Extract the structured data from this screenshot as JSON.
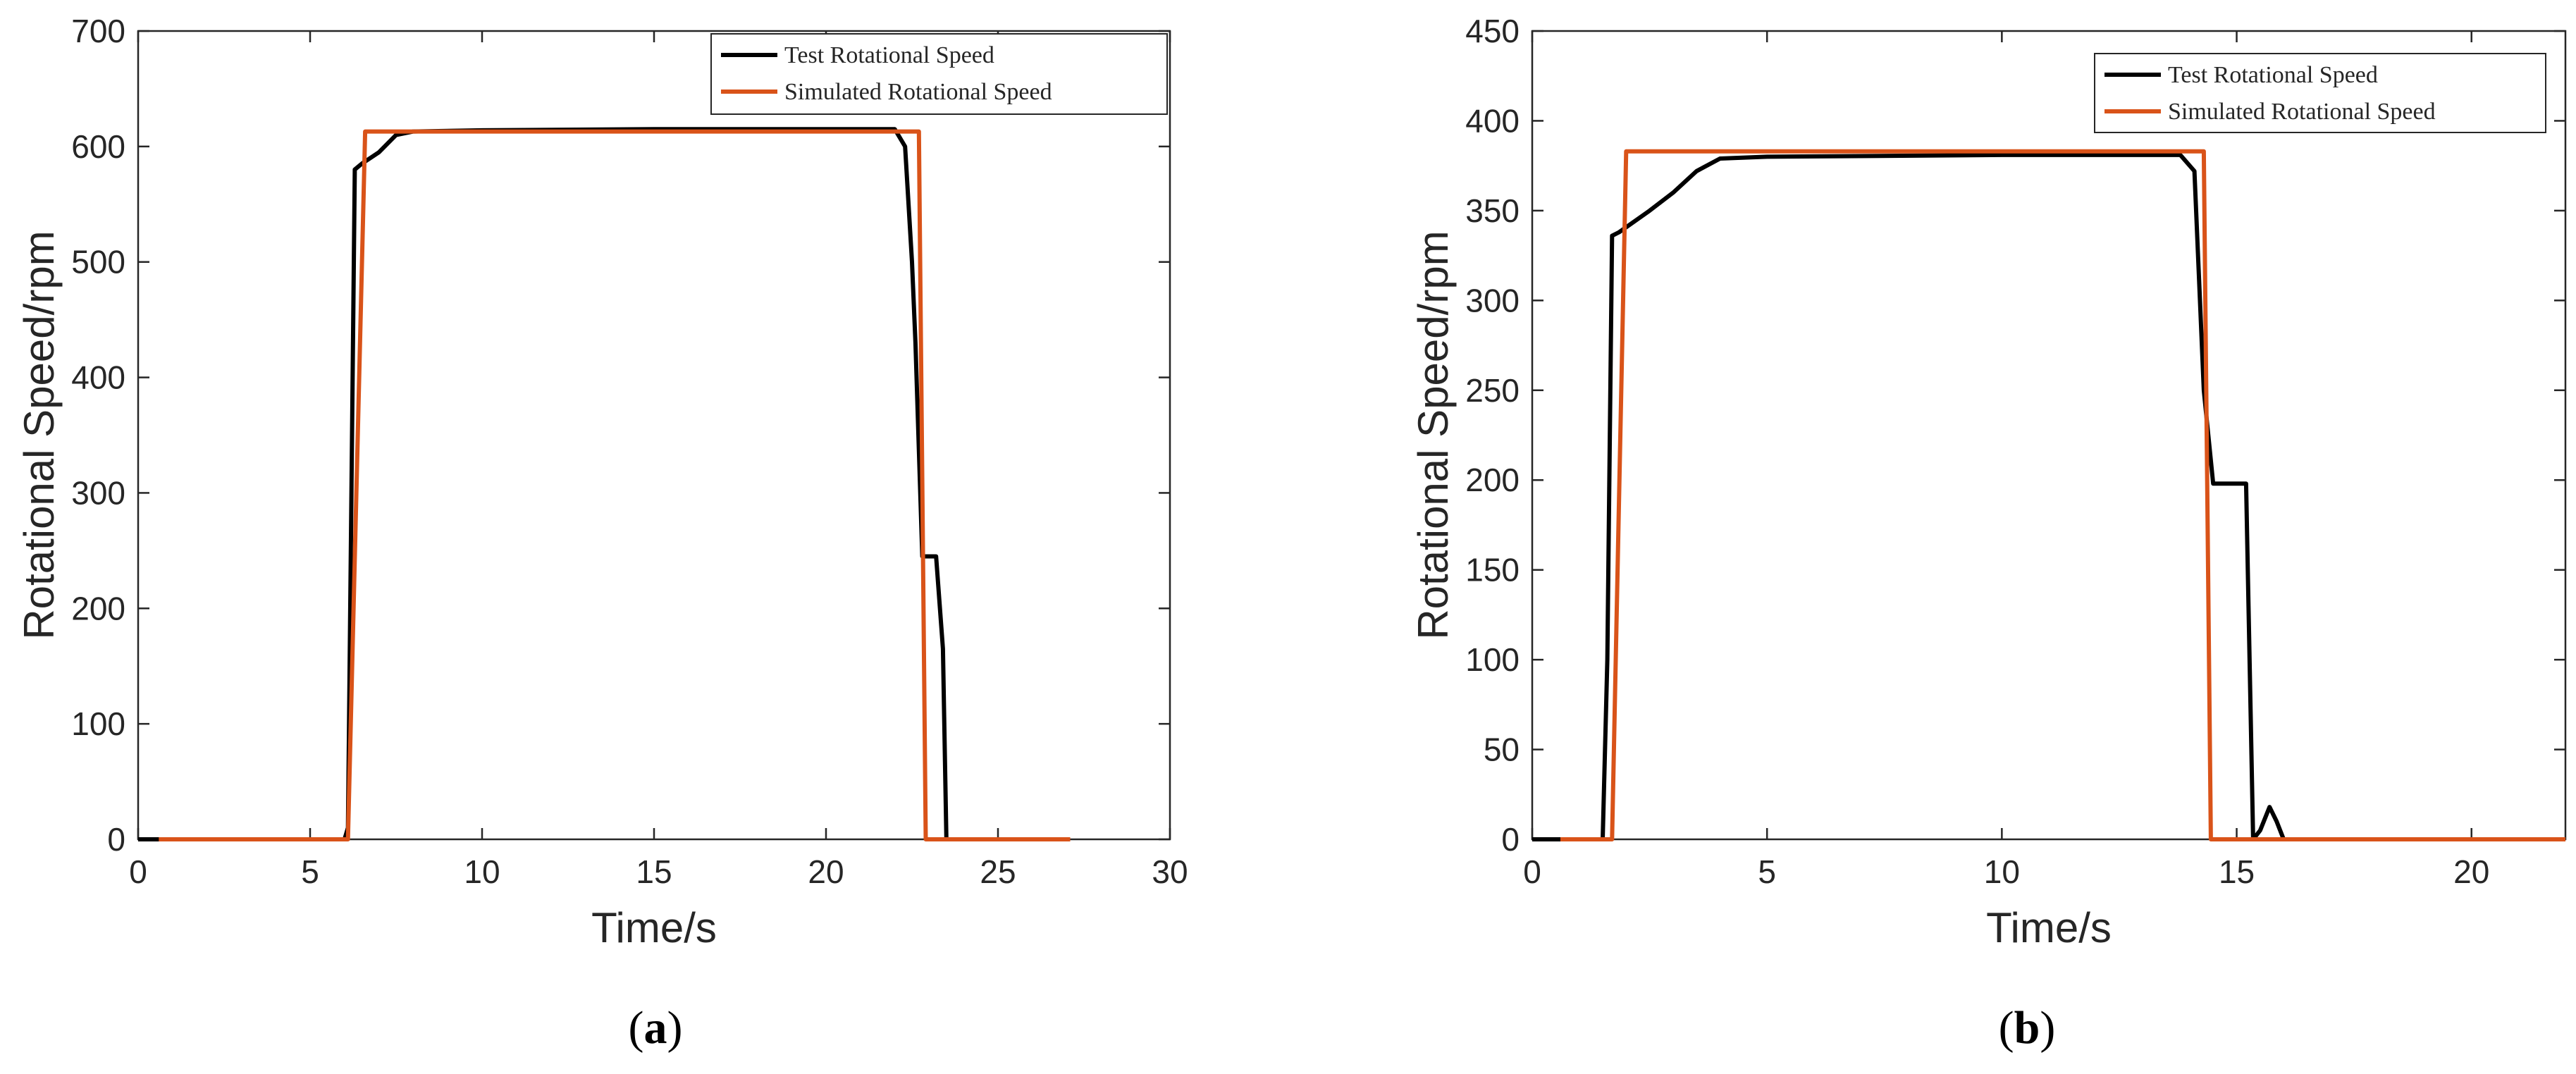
{
  "chart_data": [
    {
      "type": "line",
      "panel_label": "a",
      "xlabel": "Time/s",
      "ylabel": "Rotational Speed/rpm",
      "xlim": [
        0,
        30
      ],
      "ylim": [
        0,
        700
      ],
      "xticks": [
        0,
        5,
        10,
        15,
        20,
        25,
        30
      ],
      "yticks": [
        0,
        100,
        200,
        300,
        400,
        500,
        600,
        700
      ],
      "legend_position": "top-right",
      "grid": false,
      "series": [
        {
          "name": "Test Rotational Speed",
          "color": "#000000",
          "x": [
            0,
            0.6,
            6.0,
            6.1,
            6.3,
            6.5,
            7.0,
            7.5,
            8.0,
            10,
            15,
            20,
            22.0,
            22.3,
            22.5,
            22.6,
            22.8,
            22.9,
            23.2,
            23.4,
            23.5
          ],
          "y": [
            0,
            0,
            0,
            10,
            580,
            585,
            595,
            610,
            613,
            614,
            615,
            615,
            615,
            600,
            500,
            430,
            245,
            245,
            245,
            165,
            0
          ]
        },
        {
          "name": "Simulated Rotational Speed",
          "color": "#d95319",
          "x": [
            0.6,
            6.1,
            6.6,
            22.7,
            22.9,
            27.1
          ],
          "y": [
            0,
            0,
            613,
            613,
            0,
            0
          ]
        }
      ]
    },
    {
      "type": "line",
      "panel_label": "b",
      "xlabel": "Time/s",
      "ylabel": "Rotational Speed/rpm",
      "xlim": [
        0,
        22
      ],
      "ylim": [
        0,
        450
      ],
      "xticks": [
        0,
        5,
        10,
        15,
        20
      ],
      "yticks": [
        0,
        50,
        100,
        150,
        200,
        250,
        300,
        350,
        400,
        450
      ],
      "legend_position": "top-right",
      "grid": false,
      "series": [
        {
          "name": "Test Rotational Speed",
          "color": "#000000",
          "x": [
            0,
            0.6,
            1.5,
            1.6,
            1.7,
            1.85,
            2.5,
            3.0,
            3.5,
            4.0,
            5,
            10,
            13.8,
            14.1,
            14.3,
            14.5,
            15.2,
            15.35,
            15.5,
            15.7,
            15.85,
            16.0,
            22
          ],
          "y": [
            0,
            0,
            0,
            100,
            336,
            338,
            350,
            360,
            372,
            379,
            380,
            381,
            381,
            372,
            250,
            198,
            198,
            0,
            5,
            18,
            10,
            0,
            0
          ]
        },
        {
          "name": "Simulated Rotational Speed",
          "color": "#d95319",
          "x": [
            0.6,
            1.7,
            2.0,
            14.3,
            14.45,
            22
          ],
          "y": [
            0,
            0,
            383,
            383,
            0,
            0
          ]
        }
      ]
    }
  ]
}
